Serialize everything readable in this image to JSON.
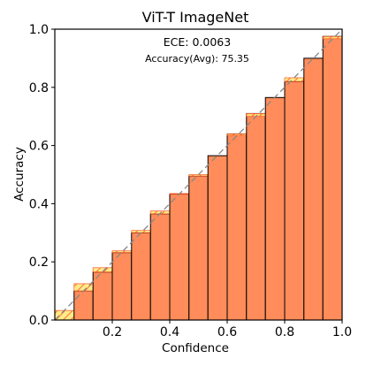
{
  "chart_data": {
    "type": "bar",
    "title": "ViT-T  ImageNet",
    "xlabel": "Confidence",
    "ylabel": "Accuracy",
    "xlim": [
      0,
      1
    ],
    "ylim": [
      0,
      1
    ],
    "xticks": [
      "0.2",
      "0.4",
      "0.6",
      "0.8",
      "1.0"
    ],
    "yticks": [
      "0.0",
      "0.2",
      "0.4",
      "0.6",
      "0.8",
      "1.0"
    ],
    "annotations": {
      "ece": "ECE: 0.0063",
      "accuracy": "Accuracy(Avg): 75.35"
    },
    "bins": [
      {
        "start": 0.0,
        "end": 0.067,
        "accuracy": 0.0,
        "confidence": 0.033
      },
      {
        "start": 0.067,
        "end": 0.133,
        "accuracy": 0.1,
        "confidence": 0.125
      },
      {
        "start": 0.133,
        "end": 0.2,
        "accuracy": 0.165,
        "confidence": 0.18
      },
      {
        "start": 0.2,
        "end": 0.267,
        "accuracy": 0.232,
        "confidence": 0.238
      },
      {
        "start": 0.267,
        "end": 0.333,
        "accuracy": 0.3,
        "confidence": 0.308
      },
      {
        "start": 0.333,
        "end": 0.4,
        "accuracy": 0.365,
        "confidence": 0.375
      },
      {
        "start": 0.4,
        "end": 0.467,
        "accuracy": 0.433,
        "confidence": 0.435
      },
      {
        "start": 0.467,
        "end": 0.533,
        "accuracy": 0.495,
        "confidence": 0.5
      },
      {
        "start": 0.533,
        "end": 0.6,
        "accuracy": 0.565,
        "confidence": 0.565
      },
      {
        "start": 0.6,
        "end": 0.667,
        "accuracy": 0.64,
        "confidence": 0.635
      },
      {
        "start": 0.667,
        "end": 0.733,
        "accuracy": 0.71,
        "confidence": 0.7
      },
      {
        "start": 0.733,
        "end": 0.8,
        "accuracy": 0.765,
        "confidence": 0.765
      },
      {
        "start": 0.8,
        "end": 0.867,
        "accuracy": 0.82,
        "confidence": 0.833
      },
      {
        "start": 0.867,
        "end": 0.933,
        "accuracy": 0.9,
        "confidence": 0.9
      },
      {
        "start": 0.933,
        "end": 1.0,
        "accuracy": 0.975,
        "confidence": 0.967
      }
    ],
    "diagonal": {
      "from": [
        0,
        0
      ],
      "to": [
        1,
        1
      ],
      "style": "dashed"
    },
    "grid": false,
    "colors": {
      "accuracy_bar": "#ff8c5a",
      "bar_edge": "#000000",
      "gap_fill": "#ffe97a",
      "gap_hatch": "#ff5a2a",
      "diagonal": "#888888"
    }
  }
}
